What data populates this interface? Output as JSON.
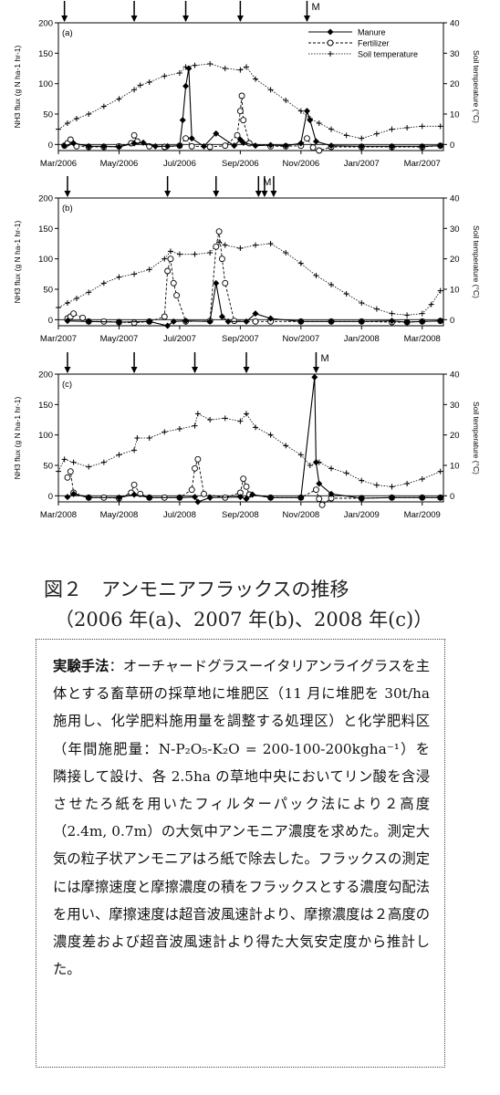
{
  "chart_data": [
    {
      "type": "line",
      "panel_label": "(a)",
      "ylabel_left": "NH3 flux (g N ha-1 hr-1)",
      "ylabel_right": "Soil temperature (°C)",
      "ylim_left": [
        0,
        200
      ],
      "ylim_left_min": -10,
      "ylim_right": [
        0,
        40
      ],
      "yticks_left": [
        0,
        50,
        100,
        150,
        200
      ],
      "yticks_right": [
        0,
        10,
        20,
        30,
        40
      ],
      "x_ticks": [
        "Mar/2006",
        "May/2006",
        "Jul/2006",
        "Sep/2006",
        "Nov/2006",
        "Jan/2007",
        "Mar/2007"
      ],
      "x_range_months": [
        0,
        12.7
      ],
      "legend": [
        "Manure",
        "Fertilizer",
        "Soil temperature"
      ],
      "legend_position": "top-right",
      "arrows_month": [
        0.2,
        2.5,
        4.2,
        6.0,
        8.2
      ],
      "manure_arrow_label": "M",
      "manure_arrow_month": 8.2,
      "series": [
        {
          "name": "Manure",
          "x": [
            0.2,
            0.5,
            1,
            1.5,
            2,
            2.5,
            2.8,
            3.2,
            3.6,
            4.0,
            4.1,
            4.2,
            4.3,
            4.4,
            4.8,
            5.2,
            5.8,
            6.0,
            6.1,
            6.5,
            7.0,
            7.5,
            8.0,
            8.2,
            8.3,
            8.5,
            9,
            10,
            11,
            12,
            12.6
          ],
          "y": [
            -2,
            2,
            -3,
            -3,
            -4,
            2,
            3,
            -3,
            -3,
            -2,
            40,
            96,
            125,
            10,
            -3,
            18,
            -2,
            8,
            3,
            -2,
            -1,
            -2,
            2,
            55,
            40,
            5,
            -2,
            -3,
            -3,
            -3,
            -2
          ]
        },
        {
          "name": "Fertilizer",
          "x": [
            0.2,
            0.3,
            0.4,
            0.6,
            1,
            1.5,
            2,
            2.4,
            2.5,
            2.6,
            3,
            3.5,
            4.0,
            4.2,
            4.4,
            5,
            5.5,
            5.9,
            6.0,
            6.05,
            6.1,
            6.3,
            7,
            7.5,
            8,
            8.2,
            8.4,
            8.6,
            9,
            10,
            11,
            12,
            12.6
          ],
          "y": [
            -2,
            2,
            8,
            -3,
            -4,
            -4,
            -3,
            2,
            15,
            5,
            -3,
            -4,
            -2,
            10,
            -3,
            -4,
            -2,
            15,
            55,
            80,
            40,
            2,
            -3,
            -3,
            -2,
            10,
            -5,
            -10,
            -4,
            -4,
            -4,
            -4,
            -2
          ]
        },
        {
          "name": "Soil temperature",
          "x": [
            0,
            0.3,
            0.6,
            1.0,
            1.5,
            2.0,
            2.5,
            2.7,
            3.0,
            3.5,
            4.0,
            4.2,
            4.5,
            5.0,
            5.5,
            6.0,
            6.2,
            6.5,
            7.0,
            7.5,
            8.0,
            8.3,
            8.6,
            9.0,
            9.5,
            10.0,
            10.5,
            11.0,
            11.5,
            12.0,
            12.6
          ],
          "y": [
            5,
            7,
            8.5,
            10,
            12.5,
            15,
            18,
            19.5,
            20.5,
            22.5,
            23.5,
            25.5,
            26,
            26.5,
            25,
            24.5,
            25.5,
            21.5,
            18,
            14.5,
            11,
            8.5,
            7,
            5,
            3,
            2,
            3.5,
            5,
            5.5,
            6,
            6
          ]
        }
      ]
    },
    {
      "type": "line",
      "panel_label": "(b)",
      "ylabel_left": "NH3 flux (g N ha-1 hr-1)",
      "ylabel_right": "Soil temperature (°C)",
      "ylim_left": [
        0,
        200
      ],
      "ylim_left_min": -10,
      "ylim_right": [
        0,
        40
      ],
      "yticks_left": [
        0,
        50,
        100,
        150,
        200
      ],
      "yticks_right": [
        0,
        10,
        20,
        30,
        40
      ],
      "x_ticks": [
        "Mar/2007",
        "May/2007",
        "Jul/2007",
        "Sep/2007",
        "Nov/2007",
        "Jan/2008",
        "Mar/2008"
      ],
      "x_range_months": [
        0,
        12.7
      ],
      "arrows_month": [
        0.3,
        3.6,
        5.2,
        6.6,
        6.8,
        7.1
      ],
      "manure_arrow_label": "M",
      "manure_arrow_month": 6.6,
      "series": [
        {
          "name": "Manure",
          "x": [
            0.3,
            1,
            2,
            3,
            3.6,
            3.8,
            4.2,
            5.0,
            5.2,
            5.4,
            5.6,
            6.2,
            6.5,
            7,
            8,
            9,
            10,
            11,
            11.5,
            12,
            12.6
          ],
          "y": [
            -2,
            -3,
            -4,
            -3,
            -10,
            -3,
            -2,
            -3,
            60,
            5,
            -3,
            -3,
            10,
            2,
            -3,
            -3,
            -3,
            -2,
            -4,
            -3,
            -2
          ]
        },
        {
          "name": "Fertilizer",
          "x": [
            0.3,
            0.4,
            0.5,
            0.8,
            1,
            1.5,
            2,
            2.5,
            3,
            3.5,
            3.6,
            3.7,
            3.8,
            3.9,
            4.2,
            5,
            5.2,
            5.3,
            5.4,
            5.5,
            5.8,
            6.5,
            7,
            8,
            9,
            10,
            11,
            11.5,
            12,
            12.6
          ],
          "y": [
            2,
            5,
            10,
            3,
            -3,
            -3,
            -4,
            -5,
            -3,
            5,
            80,
            100,
            60,
            40,
            -3,
            -2,
            120,
            145,
            100,
            60,
            -2,
            -3,
            -3,
            -3,
            -3,
            -3,
            -4,
            -4,
            -3,
            -2
          ]
        },
        {
          "name": "Soil temperature",
          "x": [
            0,
            0.3,
            0.6,
            1.0,
            1.5,
            2.0,
            2.5,
            3.0,
            3.5,
            3.7,
            4.0,
            4.5,
            5.0,
            5.3,
            5.5,
            6.0,
            6.5,
            7.0,
            7.5,
            8.0,
            8.5,
            9.0,
            9.5,
            10.0,
            10.5,
            11.0,
            11.5,
            12.0,
            12.3,
            12.6
          ],
          "y": [
            4,
            5.5,
            7,
            9,
            12,
            14,
            15,
            16.5,
            20,
            22.5,
            21.5,
            21.5,
            22,
            25.5,
            24.5,
            23.5,
            24.5,
            25,
            22,
            18.5,
            14.5,
            11.5,
            8.5,
            5.5,
            3.5,
            2,
            1.5,
            2,
            5,
            9.5
          ]
        }
      ]
    },
    {
      "type": "line",
      "panel_label": "(c)",
      "ylabel_left": "NH3 flux (g N ha-1 hr-1)",
      "ylabel_right": "Soil temperature (°C)",
      "ylim_left": [
        0,
        200
      ],
      "ylim_left_min": -10,
      "ylim_right": [
        0,
        40
      ],
      "yticks_left": [
        0,
        50,
        100,
        150,
        200
      ],
      "yticks_right": [
        0,
        10,
        20,
        30,
        40
      ],
      "x_ticks": [
        "Mar/2008",
        "May/2008",
        "Jul/2008",
        "Sep/2008",
        "Nov/2008",
        "Jan/2009",
        "Mar/2009"
      ],
      "x_range_months": [
        0,
        12.7
      ],
      "arrows_month": [
        0.3,
        2.5,
        4.5,
        6.2,
        8.5
      ],
      "manure_arrow_label": "M",
      "manure_arrow_month": 8.5,
      "series": [
        {
          "name": "Manure",
          "x": [
            0.3,
            0.5,
            1,
            2,
            2.5,
            3,
            4,
            4.5,
            4.6,
            5,
            6,
            6.2,
            6.4,
            7,
            8,
            8.45,
            8.5,
            8.6,
            9,
            10,
            11,
            12,
            12.6
          ],
          "y": [
            -2,
            3,
            -3,
            -3,
            2,
            -3,
            -3,
            -2,
            -10,
            -3,
            -2,
            -5,
            2,
            -3,
            -3,
            195,
            55,
            20,
            3,
            -4,
            -3,
            -3,
            -3
          ]
        },
        {
          "name": "Fertilizer",
          "x": [
            0.3,
            0.4,
            0.5,
            1,
            1.5,
            2,
            2.4,
            2.5,
            2.7,
            3,
            3.5,
            4,
            4.4,
            4.5,
            4.6,
            4.8,
            5.5,
            6,
            6.1,
            6.2,
            6.3,
            7,
            8,
            8.5,
            8.6,
            8.7,
            9,
            10,
            11,
            12,
            12.6
          ],
          "y": [
            30,
            40,
            5,
            -3,
            -3,
            -4,
            5,
            18,
            3,
            -3,
            -3,
            -3,
            10,
            45,
            60,
            3,
            -3,
            5,
            28,
            15,
            2,
            -3,
            -3,
            10,
            -5,
            -15,
            -4,
            -4,
            -3,
            -3,
            -3
          ]
        },
        {
          "name": "Soil temperature",
          "x": [
            0,
            0.2,
            0.5,
            1.0,
            1.5,
            2.0,
            2.5,
            2.6,
            3.0,
            3.5,
            4.0,
            4.5,
            4.6,
            5.0,
            5.5,
            6.0,
            6.2,
            6.5,
            7.0,
            7.5,
            8.0,
            8.3,
            8.6,
            9.0,
            9.5,
            10.0,
            10.5,
            11.0,
            11.5,
            12.0,
            12.6
          ],
          "y": [
            8,
            12,
            11,
            9.5,
            11,
            13.5,
            15,
            19,
            19,
            21,
            22,
            23,
            27,
            25,
            25.5,
            24.5,
            27,
            22.5,
            20,
            16.5,
            13.5,
            10,
            11,
            9,
            7.5,
            5,
            3.5,
            3,
            4,
            5.5,
            8
          ]
        }
      ]
    }
  ],
  "figure_caption": {
    "line1": "図２　アンモニアフラックスの推移",
    "line2": "（2006 年(a)、2007 年(b)、2008 年(c)）"
  },
  "method_box": {
    "label": "実験手法",
    "text": "：オーチャードグラスーイタリアンライグラスを主体とする畜草研の採草地に堆肥区（11 月に堆肥を 30t/ha 施用し、化学肥料施用量を調整する処理区）と化学肥料区（年間施肥量：N-P₂O₅-K₂O = 200-100-200kgha⁻¹）を隣接して設け、各 2.5ha の草地中央においてリン酸を含浸させたろ紙を用いたフィルターパック法により２高度（2.4m, 0.7m）の大気中アンモニア濃度を求めた。測定大気の粒子状アンモニアはろ紙で除去した。フラックスの測定には摩擦速度と摩擦濃度の積をフラックスとする濃度勾配法を用い、摩擦速度は超音波風速計より、摩擦濃度は２高度の濃度差および超音波風速計より得た大気安定度から推計した。"
  }
}
